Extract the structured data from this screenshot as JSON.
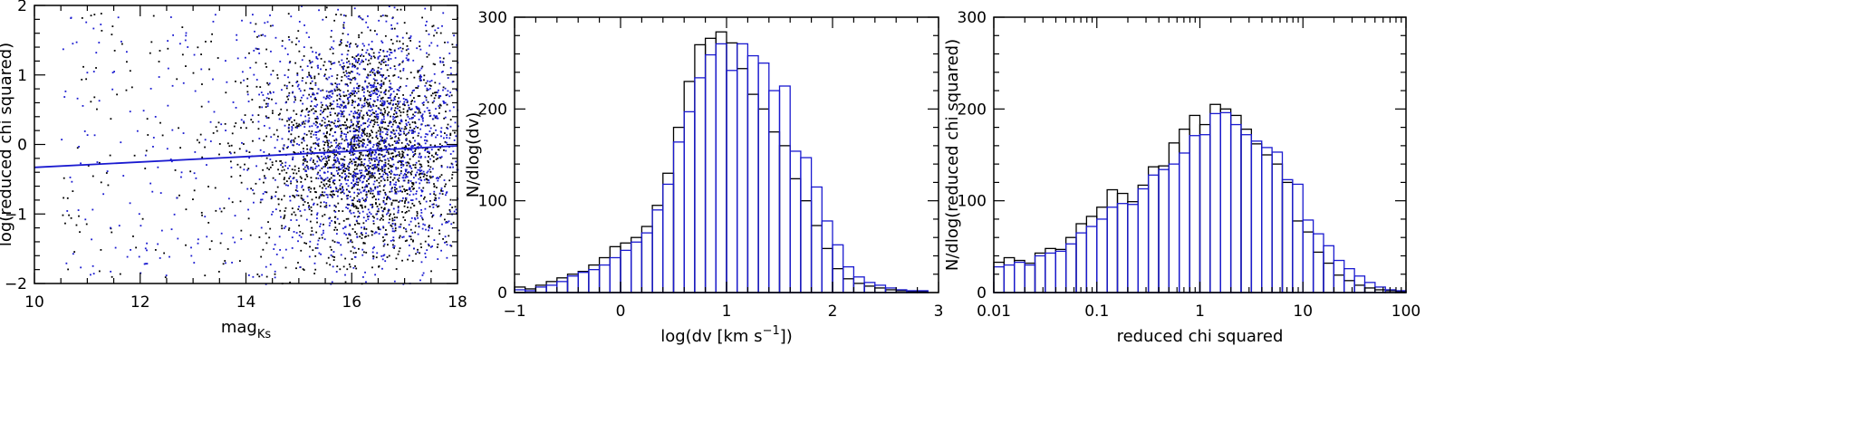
{
  "colors": {
    "axis": "#000000",
    "black_series": "#000000",
    "blue_series": "#1a1ad0"
  },
  "chart_data": [
    {
      "type": "scatter",
      "title": "",
      "xlabel": "mag",
      "xlabel_sub": "Ks",
      "ylabel": "log(reduced chi squared)",
      "xlim": [
        10,
        18
      ],
      "ylim": [
        -2,
        2
      ],
      "xticks": [
        10,
        12,
        14,
        16,
        18
      ],
      "xtick_labels": [
        "10",
        "12",
        "14",
        "16",
        "18"
      ],
      "yticks": [
        -2,
        -1,
        0,
        1,
        2
      ],
      "ytick_labels": [
        "−2",
        "−1",
        "0",
        "1",
        "2"
      ],
      "point_clouds": [
        {
          "color": "black",
          "n": 2000,
          "bright_x_range": [
            10.5,
            15.0
          ],
          "bright_fraction": 0.08,
          "faint_x_mean": 16.2,
          "faint_x_sd": 1.0,
          "y_mean": 0.0,
          "y_sd": 0.85
        },
        {
          "color": "blue",
          "n": 1800,
          "bright_x_range": [
            10.5,
            15.0
          ],
          "bright_fraction": 0.1,
          "faint_x_mean": 16.4,
          "faint_x_sd": 1.0,
          "y_mean": 0.0,
          "y_sd": 0.9
        }
      ],
      "fit_line": {
        "x": [
          10,
          18
        ],
        "y": [
          -0.33,
          -0.02
        ],
        "color": "blue"
      }
    },
    {
      "type": "bar",
      "title": "",
      "xlabel": "log(dv [km s",
      "xlabel_sup": "−1",
      "xlabel_end": "])",
      "ylabel": "N/dlog(dv)",
      "xlim": [
        -1,
        3
      ],
      "ylim": [
        0,
        300
      ],
      "xticks": [
        -1,
        0,
        1,
        2,
        3
      ],
      "xtick_labels": [
        "−1",
        "0",
        "1",
        "2",
        "3"
      ],
      "yticks": [
        0,
        100,
        200,
        300
      ],
      "ytick_labels": [
        "0",
        "100",
        "200",
        "300"
      ],
      "bin_start": -1,
      "bin_width": 0.1,
      "series": [
        {
          "color": "black",
          "values": [
            6,
            4,
            8,
            12,
            16,
            20,
            23,
            30,
            38,
            50,
            54,
            60,
            72,
            95,
            130,
            180,
            230,
            270,
            277,
            284,
            272,
            244,
            216,
            200,
            175,
            160,
            124,
            100,
            73,
            48,
            26,
            15,
            10,
            7,
            5,
            3,
            2,
            1,
            1,
            0
          ]
        },
        {
          "color": "blue",
          "values": [
            3,
            2,
            6,
            8,
            12,
            18,
            22,
            25,
            30,
            38,
            46,
            55,
            65,
            90,
            118,
            164,
            197,
            234,
            259,
            271,
            242,
            271,
            258,
            250,
            220,
            225,
            154,
            147,
            115,
            78,
            52,
            28,
            17,
            11,
            8,
            5,
            3,
            2,
            2,
            0
          ]
        }
      ]
    },
    {
      "type": "bar",
      "title": "",
      "xlabel": "reduced chi squared",
      "ylabel": "N/dlog(reduced chi squared)",
      "xscale": "log",
      "xlim": [
        0.01,
        100
      ],
      "ylim": [
        0,
        300
      ],
      "xticks": [
        0.01,
        0.1,
        1,
        10,
        100
      ],
      "xtick_labels": [
        "0.01",
        "0.1",
        "1",
        "10",
        "100"
      ],
      "yticks": [
        0,
        100,
        200,
        300
      ],
      "ytick_labels": [
        "0",
        "100",
        "200",
        "300"
      ],
      "bin_start_log10": -2,
      "bin_width_log10": 0.1,
      "series": [
        {
          "color": "black",
          "values": [
            33,
            38,
            35,
            32,
            43,
            48,
            47,
            60,
            75,
            83,
            93,
            112,
            108,
            99,
            117,
            137,
            138,
            163,
            178,
            193,
            183,
            205,
            200,
            193,
            178,
            162,
            150,
            140,
            120,
            78,
            66,
            44,
            32,
            19,
            13,
            8,
            5,
            3,
            2,
            1
          ]
        },
        {
          "color": "blue",
          "values": [
            28,
            30,
            33,
            30,
            40,
            43,
            45,
            53,
            65,
            72,
            80,
            93,
            97,
            96,
            113,
            128,
            134,
            140,
            152,
            171,
            172,
            195,
            196,
            183,
            172,
            165,
            158,
            153,
            123,
            118,
            79,
            64,
            51,
            35,
            26,
            18,
            11,
            6,
            3,
            2
          ]
        }
      ]
    }
  ]
}
